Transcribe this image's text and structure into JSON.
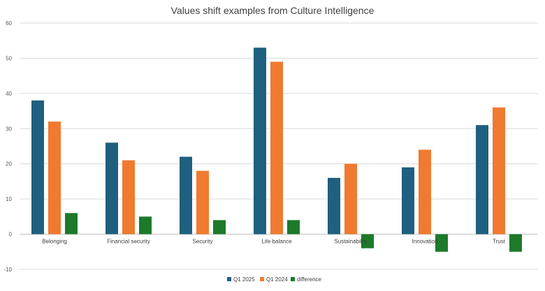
{
  "chart_data": {
    "type": "bar",
    "title": "Values shift examples from Culture Intelligence",
    "categories": [
      "Belonging",
      "Financial security",
      "Security",
      "Life balance",
      "Sustainability",
      "Innovation",
      "Trust"
    ],
    "series": [
      {
        "name": "Q1 2025",
        "color": "#1F5F7F",
        "values": [
          38,
          26,
          22,
          53,
          16,
          19,
          31
        ]
      },
      {
        "name": "Q1 2024",
        "color": "#F07A2F",
        "values": [
          32,
          21,
          18,
          49,
          20,
          24,
          36
        ]
      },
      {
        "name": "difference",
        "color": "#1C7A2A",
        "values": [
          6,
          5,
          4,
          4,
          -4,
          -5,
          -5
        ]
      }
    ],
    "ylim": [
      -10,
      60
    ],
    "yticks": [
      -10,
      0,
      10,
      20,
      30,
      40,
      50,
      60
    ],
    "grid": true,
    "legend": "bottom"
  }
}
